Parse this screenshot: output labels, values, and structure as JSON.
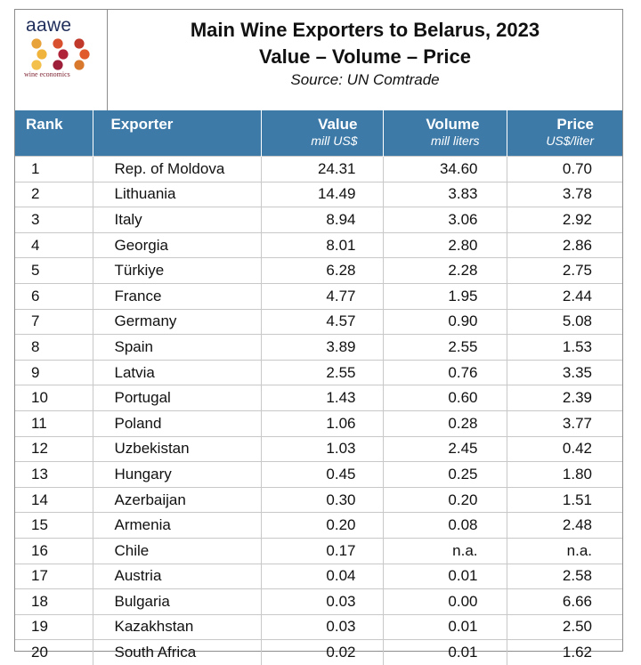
{
  "logo": {
    "word": "aawe",
    "subtitle": "wine economics",
    "dot_colors": [
      "#e8a23a",
      "#d9502f",
      "#c0392b",
      "#f0b43c",
      "#b0243a",
      "#e05a2b",
      "#f3c14b",
      "#9e1f3a",
      "#d8792d"
    ]
  },
  "title": "Main Wine Exporters to Belarus, 2023",
  "subtitle": "Value – Volume – Price",
  "source": "Source: UN Comtrade",
  "colors": {
    "header_bg": "#3d7aa8",
    "header_text": "#ffffff"
  },
  "chart_data": {
    "type": "table",
    "columns": [
      {
        "label": "Rank",
        "unit": ""
      },
      {
        "label": "Exporter",
        "unit": ""
      },
      {
        "label": "Value",
        "unit": "mill US$"
      },
      {
        "label": "Volume",
        "unit": "mill liters"
      },
      {
        "label": "Price",
        "unit": "US$/liter"
      }
    ],
    "rows": [
      [
        "1",
        "Rep. of Moldova",
        "24.31",
        "34.60",
        "0.70"
      ],
      [
        "2",
        "Lithuania",
        "14.49",
        "3.83",
        "3.78"
      ],
      [
        "3",
        "Italy",
        "8.94",
        "3.06",
        "2.92"
      ],
      [
        "4",
        "Georgia",
        "8.01",
        "2.80",
        "2.86"
      ],
      [
        "5",
        "Türkiye",
        "6.28",
        "2.28",
        "2.75"
      ],
      [
        "6",
        "France",
        "4.77",
        "1.95",
        "2.44"
      ],
      [
        "7",
        "Germany",
        "4.57",
        "0.90",
        "5.08"
      ],
      [
        "8",
        "Spain",
        "3.89",
        "2.55",
        "1.53"
      ],
      [
        "9",
        "Latvia",
        "2.55",
        "0.76",
        "3.35"
      ],
      [
        "10",
        "Portugal",
        "1.43",
        "0.60",
        "2.39"
      ],
      [
        "11",
        "Poland",
        "1.06",
        "0.28",
        "3.77"
      ],
      [
        "12",
        "Uzbekistan",
        "1.03",
        "2.45",
        "0.42"
      ],
      [
        "13",
        "Hungary",
        "0.45",
        "0.25",
        "1.80"
      ],
      [
        "14",
        "Azerbaijan",
        "0.30",
        "0.20",
        "1.51"
      ],
      [
        "15",
        "Armenia",
        "0.20",
        "0.08",
        "2.48"
      ],
      [
        "16",
        "Chile",
        "0.17",
        "n.a.",
        "n.a."
      ],
      [
        "17",
        "Austria",
        "0.04",
        "0.01",
        "2.58"
      ],
      [
        "18",
        "Bulgaria",
        "0.03",
        "0.00",
        "6.66"
      ],
      [
        "19",
        "Kazakhstan",
        "0.03",
        "0.01",
        "2.50"
      ],
      [
        "20",
        "South Africa",
        "0.02",
        "0.01",
        "1.62"
      ]
    ]
  }
}
